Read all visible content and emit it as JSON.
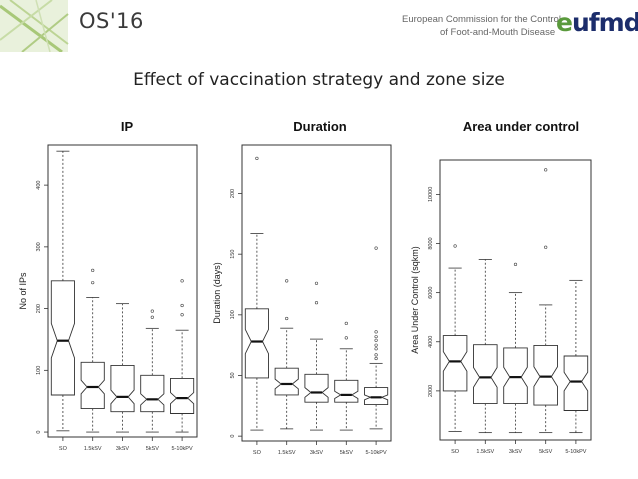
{
  "header": {
    "brand": "OS'16",
    "org_line1": "European Commission for the Control",
    "org_line2": "of Foot-and-Mouth Disease",
    "logo_e": "e",
    "logo_rest": "ufmd"
  },
  "colors": {
    "green": "#5a9a3c",
    "navy": "#1c2d6b"
  },
  "main_title": "Effect of vaccination strategy and zone size",
  "chart_data": [
    {
      "type": "boxplot",
      "title": "IP",
      "ylabel": "No of IPs",
      "categories": [
        "SO",
        "1.5kSV",
        "3kSV",
        "5kSV",
        "5-10kPV"
      ],
      "yticks": [
        0,
        100,
        200,
        300,
        400
      ],
      "ylim": [
        -8,
        465
      ],
      "boxes": [
        {
          "min": 2,
          "q1": 60,
          "median": 148,
          "q3": 245,
          "max": 455,
          "notch_low": 120,
          "notch_high": 176,
          "outliers": []
        },
        {
          "min": 0,
          "q1": 38,
          "median": 73,
          "q3": 113,
          "max": 218,
          "notch_low": 62,
          "notch_high": 84,
          "outliers": [
            242,
            262
          ]
        },
        {
          "min": 0,
          "q1": 33,
          "median": 57,
          "q3": 108,
          "max": 208,
          "notch_low": 46,
          "notch_high": 68,
          "outliers": []
        },
        {
          "min": 0,
          "q1": 33,
          "median": 53,
          "q3": 92,
          "max": 168,
          "notch_low": 44,
          "notch_high": 62,
          "outliers": [
            186,
            196
          ]
        },
        {
          "min": 0,
          "q1": 30,
          "median": 55,
          "q3": 87,
          "max": 165,
          "notch_low": 46,
          "notch_high": 64,
          "outliers": [
            190,
            205,
            245
          ]
        }
      ]
    },
    {
      "type": "boxplot",
      "title": "Duration",
      "ylabel": "Duration (days)",
      "categories": [
        "SO",
        "1.5kSV",
        "3kSV",
        "5kSV",
        "5-10kPV"
      ],
      "yticks": [
        0,
        50,
        100,
        150,
        200
      ],
      "ylim": [
        -4,
        240
      ],
      "boxes": [
        {
          "min": 5,
          "q1": 48,
          "median": 78,
          "q3": 105,
          "max": 167,
          "notch_low": 68,
          "notch_high": 88,
          "outliers": [
            229
          ]
        },
        {
          "min": 6,
          "q1": 34,
          "median": 43,
          "q3": 56,
          "max": 89,
          "notch_low": 39,
          "notch_high": 47,
          "outliers": [
            97,
            128
          ]
        },
        {
          "min": 5,
          "q1": 28,
          "median": 36,
          "q3": 51,
          "max": 80,
          "notch_low": 32,
          "notch_high": 40,
          "outliers": [
            110,
            126
          ]
        },
        {
          "min": 5,
          "q1": 28,
          "median": 34,
          "q3": 46,
          "max": 72,
          "notch_low": 31,
          "notch_high": 37,
          "outliers": [
            81,
            93
          ]
        },
        {
          "min": 6,
          "q1": 26,
          "median": 32,
          "q3": 40,
          "max": 60,
          "notch_low": 30,
          "notch_high": 34,
          "outliers": [
            64,
            67,
            72,
            75,
            79,
            82,
            86,
            155
          ]
        }
      ]
    },
    {
      "type": "boxplot",
      "title": "Area under control",
      "ylabel": "Area Under Control (sqkm)",
      "categories": [
        "SO",
        "1.5kSV",
        "3kSV",
        "5kSV",
        "5-10kPV"
      ],
      "yticks": [
        2000,
        4000,
        6000,
        8000,
        10000
      ],
      "ylim": [
        0,
        11400
      ],
      "boxes": [
        {
          "min": 350,
          "q1": 2000,
          "median": 3200,
          "q3": 4250,
          "max": 7000,
          "notch_low": 2800,
          "notch_high": 3600,
          "outliers": [
            7900
          ]
        },
        {
          "min": 300,
          "q1": 1480,
          "median": 2550,
          "q3": 3880,
          "max": 7350,
          "notch_low": 2150,
          "notch_high": 2950,
          "outliers": []
        },
        {
          "min": 300,
          "q1": 1480,
          "median": 2560,
          "q3": 3750,
          "max": 6000,
          "notch_low": 2160,
          "notch_high": 2960,
          "outliers": [
            7150
          ]
        },
        {
          "min": 300,
          "q1": 1420,
          "median": 2580,
          "q3": 3850,
          "max": 5500,
          "notch_low": 2180,
          "notch_high": 2980,
          "outliers": [
            7850,
            11000
          ]
        },
        {
          "min": 300,
          "q1": 1200,
          "median": 2380,
          "q3": 3420,
          "max": 6500,
          "notch_low": 2000,
          "notch_high": 2760,
          "outliers": []
        }
      ]
    }
  ]
}
